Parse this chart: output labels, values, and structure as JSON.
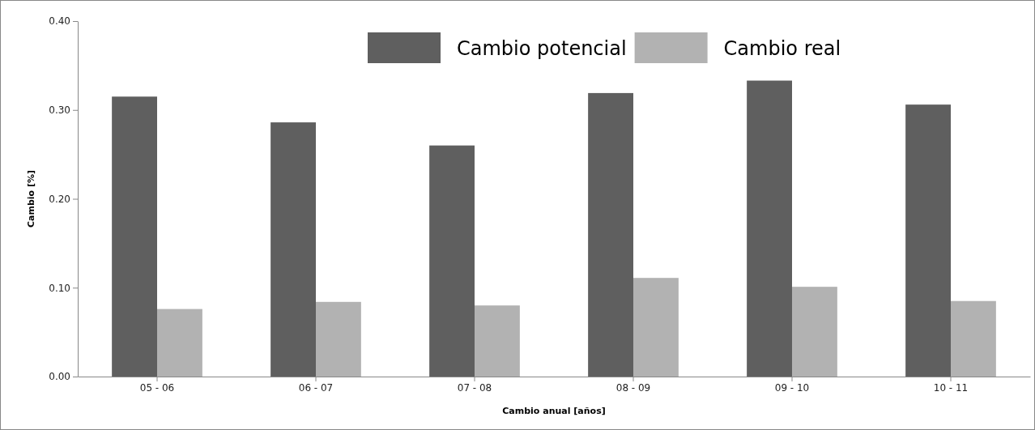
{
  "chart_data": {
    "type": "bar",
    "xlabel": "Cambio anual [años]",
    "ylabel": "Cambio [%]",
    "categories": [
      "05 - 06",
      "06 - 07",
      "07 - 08",
      "08 - 09",
      "09 - 10",
      "10 - 11"
    ],
    "series": [
      {
        "name": "Cambio potencial",
        "color": "#5f5f5f",
        "values": [
          0.315,
          0.286,
          0.26,
          0.319,
          0.333,
          0.306
        ]
      },
      {
        "name": "Cambio real",
        "color": "#b2b2b2",
        "values": [
          0.076,
          0.084,
          0.08,
          0.111,
          0.101,
          0.085
        ]
      }
    ],
    "ylim": [
      0,
      0.4
    ],
    "yticks": [
      {
        "value": 0,
        "label": "0.00"
      },
      {
        "value": 0.1,
        "label": "0.10"
      },
      {
        "value": 0.2,
        "label": "0.20"
      },
      {
        "value": 0.3,
        "label": "0.30"
      },
      {
        "value": 0.4,
        "label": "0.40"
      }
    ],
    "grid": false,
    "legend": "top"
  }
}
